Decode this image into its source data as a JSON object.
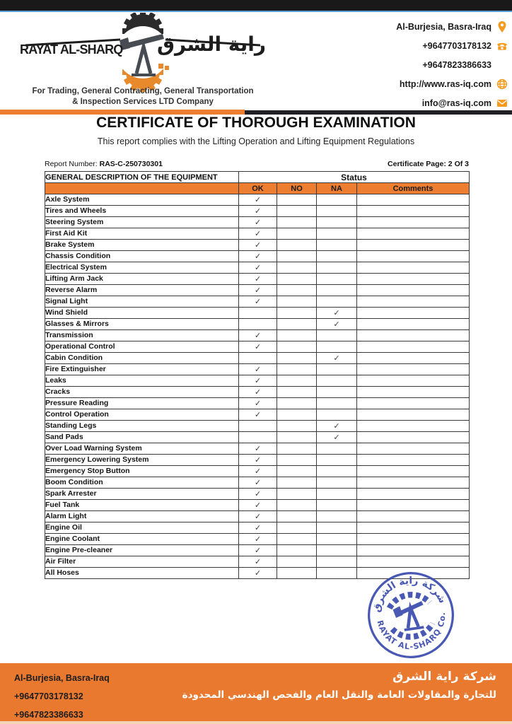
{
  "colors": {
    "accent_orange": "#ED7D31",
    "footer_orange": "#E8792F",
    "icon_orange": "#F49B20",
    "top_bar_black": "#191919",
    "top_bar_blue": "#5B9BD5",
    "divider_dark": "#202024",
    "stamp_blue": "#3A4BAD"
  },
  "header": {
    "company_name_en": "RAYAT AL-SHARQ",
    "company_name_ar": "راية الشرق",
    "tagline_line1": "For Trading, General Contracting, General Transportation",
    "tagline_line2": "& Inspection Services LTD Company",
    "contacts": [
      {
        "text": "Al-Burjesia, Basra-Iraq",
        "icon": "location-pin-icon"
      },
      {
        "text": "+9647703178132",
        "icon": "phone-icon"
      },
      {
        "text": "+9647823386633",
        "icon": null
      },
      {
        "text": "http://www.ras-iq.com",
        "icon": "globe-icon"
      },
      {
        "text": "info@ras-iq.com",
        "icon": "envelope-icon"
      }
    ]
  },
  "title": {
    "heading": "CERTIFICATE OF THOROUGH EXAMINATION",
    "subheading": "This report complies with the Lifting Operation and Lifting Equipment Regulations"
  },
  "meta": {
    "report_number_label": "Report Number:",
    "report_number_value": "RAS-C-250730301",
    "certificate_page": "Certificate Page: 2 Of 3"
  },
  "table": {
    "section_header": "GENERAL DESCRIPTION OF THE EQUIPMENT",
    "status_header": "Status",
    "columns": [
      "OK",
      "NO",
      "NA",
      "Comments"
    ],
    "check_mark": "✓",
    "rows": [
      {
        "label": "Axle System",
        "status": "OK",
        "comment": ""
      },
      {
        "label": "Tires and Wheels",
        "status": "OK",
        "comment": ""
      },
      {
        "label": "Steering System",
        "status": "OK",
        "comment": ""
      },
      {
        "label": "First Aid Kit",
        "status": "OK",
        "comment": ""
      },
      {
        "label": "Brake System",
        "status": "OK",
        "comment": ""
      },
      {
        "label": "Chassis Condition",
        "status": "OK",
        "comment": ""
      },
      {
        "label": "Electrical System",
        "status": "OK",
        "comment": ""
      },
      {
        "label": "Lifting Arm Jack",
        "status": "OK",
        "comment": ""
      },
      {
        "label": "Reverse Alarm",
        "status": "OK",
        "comment": ""
      },
      {
        "label": "Signal Light",
        "status": "OK",
        "comment": ""
      },
      {
        "label": "Wind Shield",
        "status": "NA",
        "comment": ""
      },
      {
        "label": "Glasses & Mirrors",
        "status": "NA",
        "comment": ""
      },
      {
        "label": "Transmission",
        "status": "OK",
        "comment": ""
      },
      {
        "label": "Operational Control",
        "status": "OK",
        "comment": ""
      },
      {
        "label": "Cabin Condition",
        "status": "NA",
        "comment": ""
      },
      {
        "label": "Fire Extinguisher",
        "status": "OK",
        "comment": ""
      },
      {
        "label": "Leaks",
        "status": "OK",
        "comment": ""
      },
      {
        "label": "Cracks",
        "status": "OK",
        "comment": ""
      },
      {
        "label": "Pressure Reading",
        "status": "OK",
        "comment": ""
      },
      {
        "label": "Control Operation",
        "status": "OK",
        "comment": ""
      },
      {
        "label": "Standing Legs",
        "status": "NA",
        "comment": ""
      },
      {
        "label": "Sand Pads",
        "status": "NA",
        "comment": ""
      },
      {
        "label": "Over Load Warning System",
        "status": "OK",
        "comment": ""
      },
      {
        "label": "Emergency Lowering System",
        "status": "OK",
        "comment": ""
      },
      {
        "label": "Emergency Stop Button",
        "status": "OK",
        "comment": ""
      },
      {
        "label": "Boom Condition",
        "status": "OK",
        "comment": ""
      },
      {
        "label": "Spark Arrester",
        "status": "OK",
        "comment": ""
      },
      {
        "label": "Fuel Tank",
        "status": "OK",
        "comment": ""
      },
      {
        "label": "Alarm Light",
        "status": "OK",
        "comment": ""
      },
      {
        "label": "Engine Oil",
        "status": "OK",
        "comment": ""
      },
      {
        "label": "Engine Coolant",
        "status": "OK",
        "comment": ""
      },
      {
        "label": "Engine Pre-cleaner",
        "status": "OK",
        "comment": ""
      },
      {
        "label": "Air Filter",
        "status": "OK",
        "comment": ""
      },
      {
        "label": "All Hoses",
        "status": "OK",
        "comment": ""
      }
    ]
  },
  "stamp": {
    "arabic_text": "شركة راية الشرق",
    "english_text": "RAYAT AL-SHARQ Co."
  },
  "footer": {
    "address": "Al-Burjesia, Basra-Iraq",
    "phone1": "+9647703178132",
    "phone2": "+9647823386633",
    "company_ar_line1": "شركة راية الشرق",
    "company_ar_line2": "للتجارة والمقاولات العامة والنقل العام والفحص الهندسي المحدودة"
  }
}
